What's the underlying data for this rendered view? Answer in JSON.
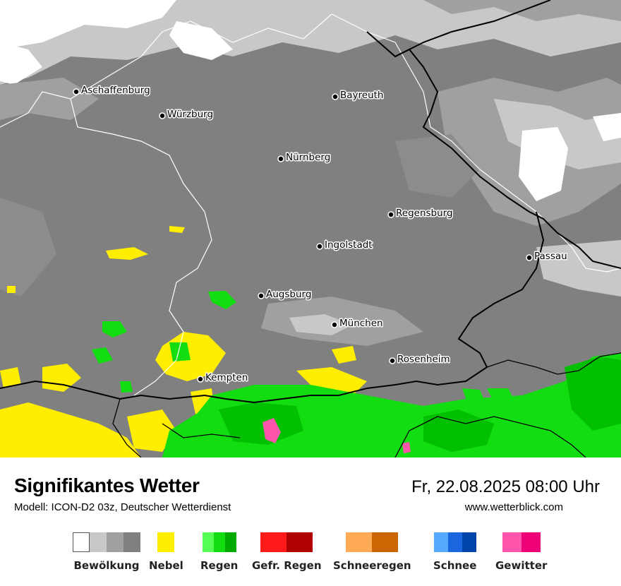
{
  "header": {
    "title": "Signifikantes Wetter",
    "model": "Modell: ICON-D2 03z, Deutscher Wetterdienst",
    "datetime": "Fr, 22.08.2025 08:00 Uhr",
    "url": "www.wetterblick.com"
  },
  "cities": [
    {
      "name": "Aschaffenburg"
    },
    {
      "name": "Würzburg"
    },
    {
      "name": "Bayreuth"
    },
    {
      "name": "Nürnberg"
    },
    {
      "name": "Regensburg"
    },
    {
      "name": "Ingolstadt"
    },
    {
      "name": "Passau"
    },
    {
      "name": "Augsburg"
    },
    {
      "name": "München"
    },
    {
      "name": "Rosenheim"
    },
    {
      "name": "Kempten"
    }
  ],
  "legend": [
    {
      "label": "Bewölkung",
      "colors": [
        "#ffffff",
        "#c8c8c8",
        "#a0a0a0",
        "#808080"
      ]
    },
    {
      "label": "Nebel",
      "colors": [
        "#ffee00"
      ]
    },
    {
      "label": "Regen",
      "colors": [
        "#55ff55",
        "#11dd11",
        "#00aa00"
      ]
    },
    {
      "label": "Gefr. Regen",
      "colors": [
        "#ff1a1a",
        "#b00000"
      ]
    },
    {
      "label": "Schneeregen",
      "colors": [
        "#ffaa55",
        "#cc6600"
      ]
    },
    {
      "label": "Schnee",
      "colors": [
        "#55aaff",
        "#1a66dd",
        "#0044aa"
      ]
    },
    {
      "label": "Gewitter",
      "colors": [
        "#ff55aa",
        "#ee0077"
      ]
    }
  ]
}
